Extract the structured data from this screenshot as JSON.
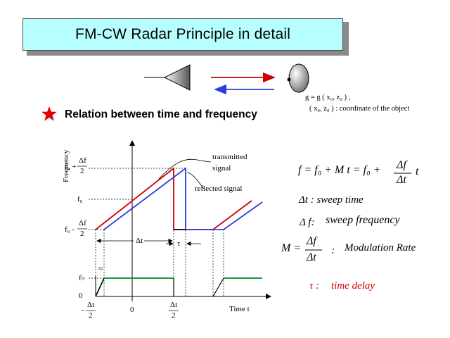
{
  "title": "FM-CW Radar Principle in detail",
  "relation": "Relation between time and frequency",
  "object_note": {
    "line1": "g = g ( x₀, z₀ ) ,",
    "line2": "( x₀, z₀ ) : coordinate of the object"
  },
  "graph": {
    "ylabel": "Frequency",
    "xlabel": "Time  t",
    "transmitted_label_1": "transmitted",
    "transmitted_label_2": "signal",
    "reflected_label": "reflected signal",
    "tick_f0_plus": "f₀ +",
    "tick_f0": "f₀",
    "tick_f0_minus": "f₀ -",
    "tick_delta_f": "Δf",
    "tick_two": "2",
    "tick_fb": "f♭",
    "tick_zero_y": "0",
    "tick_minus": "-",
    "tick_delta_t": "Δt",
    "tick_zero_x": "0",
    "interval_delta_t": "Δt",
    "interval_tau": "τ",
    "break_mark": "≈"
  },
  "equations": {
    "f_eq": "f = f₀ + M t = f₀ +",
    "frac_num": "Δf",
    "frac_den": "Δt",
    "t": "t",
    "sweep_time": "Δt : sweep time",
    "sweep_freq_sym": "Δ f:",
    "sweep_freq": "sweep  frequency",
    "M_eq": "M =",
    "M_num": "Δf",
    "M_den": "Δt",
    "colon": ":",
    "modulation": "Modulation Rate",
    "tau": "τ :",
    "time_delay": "time delay"
  },
  "colors": {
    "title_bg": "#b7ffff",
    "transmitted": "#cc0000",
    "reflected": "#2a3de0",
    "beat": "#008a2a",
    "star": "#e00000",
    "tau_text": "#cc0000"
  }
}
